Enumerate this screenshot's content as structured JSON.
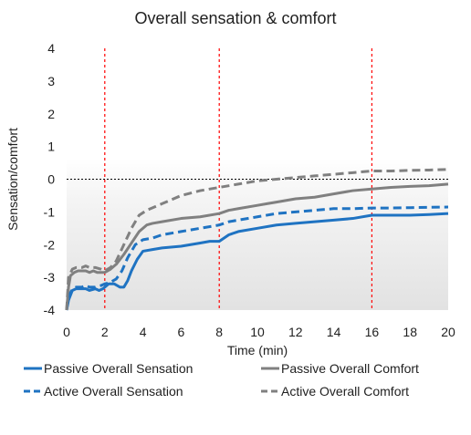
{
  "chart_data": {
    "type": "line",
    "title": "Overall sensation & comfort",
    "xlabel": "Time (min)",
    "ylabel": "Sensation/comfort",
    "xlim": [
      0,
      20
    ],
    "ylim": [
      -4,
      4
    ],
    "x_ticks": [
      0,
      2,
      4,
      6,
      8,
      10,
      12,
      14,
      16,
      18,
      20
    ],
    "y_ticks": [
      -4,
      -3,
      -2,
      -1,
      0,
      1,
      2,
      3,
      4
    ],
    "grid": false,
    "legend_position": "bottom",
    "reference_line": {
      "y": 0,
      "style": "dotted",
      "color": "#000000"
    },
    "vertical_markers": [
      {
        "x": 2,
        "color": "#ff0000",
        "style": "dotted"
      },
      {
        "x": 8,
        "color": "#ff0000",
        "style": "dotted"
      },
      {
        "x": 16,
        "color": "#ff0000",
        "style": "dotted"
      }
    ],
    "series": [
      {
        "name": "Passive Overall Sensation",
        "color": "#1f73c2",
        "dash": "solid",
        "x": [
          0.0,
          0.1,
          0.3,
          0.5,
          0.7,
          1.0,
          1.2,
          1.5,
          1.7,
          1.9,
          2.0,
          2.2,
          2.5,
          2.8,
          3.0,
          3.2,
          3.4,
          3.7,
          4.0,
          4.5,
          5.0,
          6.0,
          6.5,
          7.0,
          7.5,
          8.0,
          8.5,
          9.0,
          10.0,
          11.0,
          12.0,
          13.0,
          14.0,
          15.0,
          16.0,
          17.0,
          18.0,
          19.0,
          20.0
        ],
        "y": [
          -4.0,
          -3.7,
          -3.4,
          -3.35,
          -3.35,
          -3.35,
          -3.4,
          -3.35,
          -3.4,
          -3.35,
          -3.3,
          -3.2,
          -3.2,
          -3.3,
          -3.3,
          -3.1,
          -2.8,
          -2.45,
          -2.2,
          -2.15,
          -2.1,
          -2.05,
          -2.0,
          -1.95,
          -1.9,
          -1.9,
          -1.7,
          -1.6,
          -1.5,
          -1.4,
          -1.35,
          -1.3,
          -1.25,
          -1.2,
          -1.1,
          -1.1,
          -1.1,
          -1.08,
          -1.05
        ]
      },
      {
        "name": "Passive Overall Comfort",
        "color": "#808080",
        "dash": "solid",
        "x": [
          0.0,
          0.1,
          0.2,
          0.4,
          0.6,
          0.8,
          1.0,
          1.2,
          1.4,
          1.6,
          1.8,
          2.0,
          2.3,
          2.6,
          3.0,
          3.4,
          3.8,
          4.2,
          4.5,
          5.0,
          6.0,
          7.0,
          8.0,
          8.5,
          9.0,
          10.0,
          10.5,
          11.0,
          12.0,
          13.0,
          14.0,
          15.0,
          16.0,
          17.0,
          18.0,
          19.0,
          20.0
        ],
        "y": [
          -4.0,
          -3.3,
          -2.95,
          -2.85,
          -2.8,
          -2.8,
          -2.8,
          -2.85,
          -2.8,
          -2.85,
          -2.85,
          -2.85,
          -2.75,
          -2.6,
          -2.3,
          -1.95,
          -1.6,
          -1.4,
          -1.35,
          -1.3,
          -1.2,
          -1.15,
          -1.05,
          -0.95,
          -0.9,
          -0.8,
          -0.75,
          -0.7,
          -0.6,
          -0.55,
          -0.45,
          -0.35,
          -0.3,
          -0.25,
          -0.22,
          -0.2,
          -0.15
        ]
      },
      {
        "name": "Active Overall Sensation",
        "color": "#1f73c2",
        "dash": "dashed",
        "x": [
          0.0,
          0.1,
          0.3,
          0.5,
          0.8,
          1.0,
          1.2,
          1.5,
          1.8,
          2.0,
          2.3,
          2.6,
          2.9,
          3.2,
          3.6,
          4.0,
          4.5,
          5.0,
          6.0,
          7.0,
          8.0,
          8.5,
          9.0,
          10.0,
          11.0,
          12.0,
          13.0,
          14.0,
          15.0,
          16.0,
          17.0,
          18.0,
          19.0,
          20.0
        ],
        "y": [
          -4.0,
          -3.6,
          -3.35,
          -3.3,
          -3.3,
          -3.25,
          -3.3,
          -3.3,
          -3.25,
          -3.2,
          -3.15,
          -3.05,
          -2.8,
          -2.4,
          -2.0,
          -1.85,
          -1.8,
          -1.7,
          -1.6,
          -1.5,
          -1.4,
          -1.3,
          -1.25,
          -1.15,
          -1.05,
          -1.0,
          -0.95,
          -0.9,
          -0.9,
          -0.88,
          -0.88,
          -0.87,
          -0.86,
          -0.85
        ]
      },
      {
        "name": "Active Overall Comfort",
        "color": "#808080",
        "dash": "dashed",
        "x": [
          0.0,
          0.1,
          0.3,
          0.5,
          0.8,
          1.0,
          1.2,
          1.5,
          1.8,
          2.0,
          2.3,
          2.6,
          3.0,
          3.4,
          3.8,
          4.2,
          4.6,
          5.0,
          6.0,
          7.0,
          8.0,
          9.0,
          10.0,
          11.0,
          12.0,
          13.0,
          14.0,
          15.0,
          16.0,
          17.0,
          18.0,
          19.0,
          20.0
        ],
        "y": [
          -4.0,
          -3.0,
          -2.75,
          -2.7,
          -2.7,
          -2.65,
          -2.7,
          -2.7,
          -2.75,
          -2.8,
          -2.7,
          -2.5,
          -2.0,
          -1.5,
          -1.1,
          -0.95,
          -0.85,
          -0.75,
          -0.5,
          -0.35,
          -0.25,
          -0.15,
          -0.05,
          0.0,
          0.05,
          0.1,
          0.15,
          0.2,
          0.25,
          0.25,
          0.27,
          0.28,
          0.3
        ]
      }
    ]
  }
}
